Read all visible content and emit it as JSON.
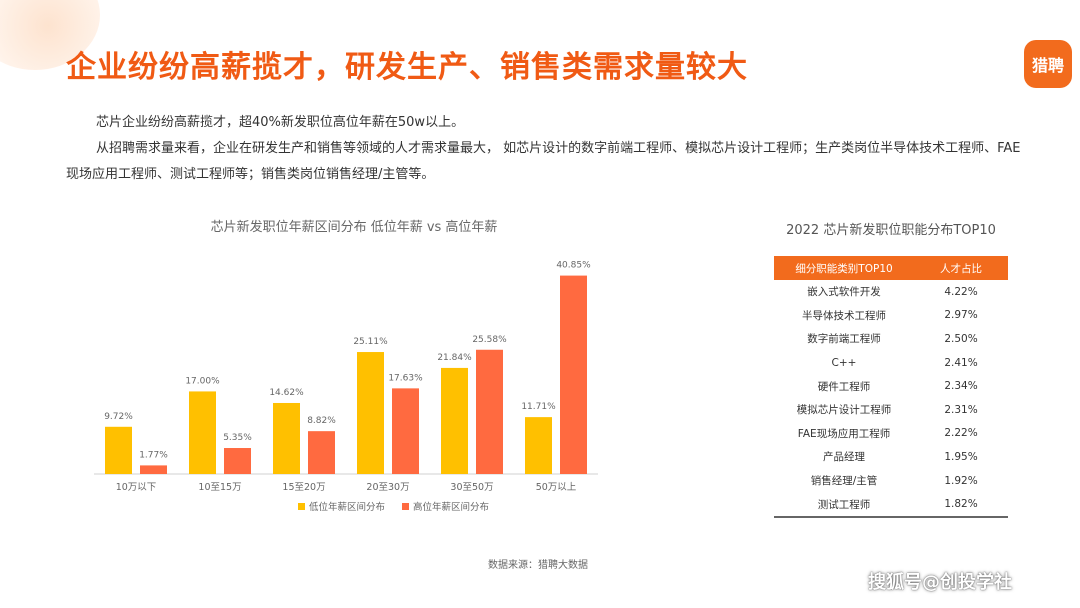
{
  "header": {
    "title": "企业纷纷高薪揽才，研发生产、销售类需求量较大",
    "logo_text": "猎聘"
  },
  "intro": {
    "line1": "芯片企业纷纷高薪揽才，超40%新发职位高位年薪在50w以上。",
    "line2": "从招聘需求量来看，企业在研发生产和销售等领域的人才需求量最大， 如芯片设计的数字前端工程师、模拟芯片设计工程师；生产类岗位半导体技术工程师、FAE现场应用工程师、测试工程师等；销售类岗位销售经理/主管等。"
  },
  "chart_data": {
    "type": "bar",
    "title": "芯片新发职位年薪区间分布 低位年薪 vs 高位年薪",
    "categories": [
      "10万以下",
      "10至15万",
      "15至20万",
      "20至30万",
      "30至50万",
      "50万以上"
    ],
    "series": [
      {
        "name": "低位年薪区间分布",
        "color": "#ffc000",
        "values": [
          9.72,
          17.0,
          14.62,
          25.11,
          21.84,
          11.71
        ],
        "labels": [
          "9.72%",
          "17.00%",
          "14.62%",
          "25.11%",
          "21.84%",
          "11.71%"
        ]
      },
      {
        "name": "高位年薪区间分布",
        "color": "#ff6a40",
        "values": [
          1.77,
          5.35,
          8.82,
          17.63,
          25.58,
          40.85
        ],
        "labels": [
          "1.77%",
          "5.35%",
          "8.82%",
          "17.63%",
          "25.58%",
          "40.85%"
        ]
      }
    ],
    "ylim": [
      0,
      42
    ],
    "grid": false,
    "legend": "bottom"
  },
  "source_note": "数据来源：猎聘大数据",
  "top10": {
    "title": "2022 芯片新发职位职能分布TOP10",
    "headers": [
      "细分职能类别TOP10",
      "人才占比"
    ],
    "rows": [
      [
        "嵌入式软件开发",
        "4.22%"
      ],
      [
        "半导体技术工程师",
        "2.97%"
      ],
      [
        "数字前端工程师",
        "2.50%"
      ],
      [
        "C++",
        "2.41%"
      ],
      [
        "硬件工程师",
        "2.34%"
      ],
      [
        "模拟芯片设计工程师",
        "2.31%"
      ],
      [
        "FAE现场应用工程师",
        "2.22%"
      ],
      [
        "产品经理",
        "1.95%"
      ],
      [
        "销售经理/主管",
        "1.92%"
      ],
      [
        "测试工程师",
        "1.82%"
      ]
    ]
  },
  "watermark": "搜狐号@创投学社"
}
